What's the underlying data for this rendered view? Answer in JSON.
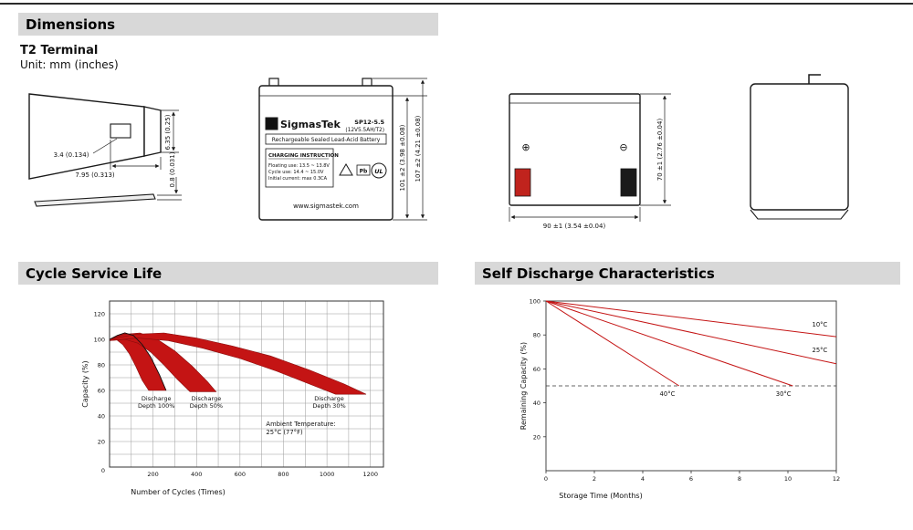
{
  "header": {
    "title": "Dimensions"
  },
  "terminal": {
    "title": "T2 Terminal",
    "unit": "Unit: mm (inches)",
    "dims": {
      "height": "6.35 (0.25)",
      "hole": "3.4 (0.134)",
      "width": "7.95 (0.313)",
      "thickness": "0.8 (0.031)"
    }
  },
  "front_view": {
    "logo_letter": "S",
    "brand": "SigmasTek",
    "model": "SP12-5.5",
    "rating": "(12V5.5AH/T2)",
    "type_line": "Rechargeable Sealed Lead-Acid Battery",
    "charging_title": "CHARGING INSTRUCTION",
    "charging_line1": "Floating use: 13.5 ~ 13.8V",
    "charging_line2": "Cycle use: 14.4 ~ 15.0V",
    "charging_line3": "Initial current: max 0.3CA",
    "icon_pb": "Pb",
    "icon_ul": "UL",
    "website": "www.sigmastek.com",
    "dim_height_case": "101 ±2 (3.98 ±0.08)",
    "dim_height_total": "107 ±2 (4.21 ±0.08)"
  },
  "rear_view": {
    "positive": "⊕",
    "negative": "⊖",
    "dim_height": "70 ±1 (2.76 ±0.04)",
    "dim_width": "90 ±1 (3.54 ±0.04)"
  },
  "chart_data": [
    {
      "type": "area",
      "title": "Cycle Service Life",
      "xlabel": "Number of Cycles (Times)",
      "ylabel": "Capacity (%)",
      "xlim": [
        0,
        1260
      ],
      "ylim": [
        0,
        130
      ],
      "xticks": [
        200,
        400,
        600,
        800,
        1000,
        1200
      ],
      "yticks": [
        20,
        40,
        60,
        80,
        100,
        120
      ],
      "origin_label": "0",
      "grid": {
        "x_step": 100,
        "y_step": 10
      },
      "band_color": "#c41414",
      "outline": [
        [
          0,
          100
        ],
        [
          35,
          103
        ],
        [
          70,
          105
        ],
        [
          110,
          103
        ],
        [
          150,
          96
        ],
        [
          190,
          86
        ],
        [
          230,
          72
        ],
        [
          260,
          60
        ]
      ],
      "bands": [
        {
          "label_line1": "Discharge",
          "label_line2": "Depth 100%",
          "label_x": 215,
          "label_y": 52,
          "polygon": [
            [
              0,
              100
            ],
            [
              35,
              103
            ],
            [
              70,
              105
            ],
            [
              110,
              103
            ],
            [
              150,
              96
            ],
            [
              190,
              86
            ],
            [
              230,
              72
            ],
            [
              260,
              60
            ],
            [
              180,
              60
            ],
            [
              150,
              68
            ],
            [
              120,
              79
            ],
            [
              90,
              89
            ],
            [
              60,
              96
            ],
            [
              30,
              100
            ],
            [
              0,
              99
            ]
          ]
        },
        {
          "label_line1": "Discharge",
          "label_line2": "Depth 50%",
          "label_x": 445,
          "label_y": 52,
          "polygon": [
            [
              0,
              100
            ],
            [
              70,
              104
            ],
            [
              140,
              105
            ],
            [
              220,
              100
            ],
            [
              300,
              91
            ],
            [
              380,
              79
            ],
            [
              450,
              67
            ],
            [
              490,
              59
            ],
            [
              370,
              59
            ],
            [
              310,
              69
            ],
            [
              250,
              80
            ],
            [
              190,
              90
            ],
            [
              130,
              97
            ],
            [
              70,
              100
            ],
            [
              0,
              99
            ]
          ]
        },
        {
          "label_line1": "Discharge",
          "label_line2": "Depth 30%",
          "label_x": 1010,
          "label_y": 52,
          "polygon": [
            [
              0,
              100
            ],
            [
              120,
              104
            ],
            [
              250,
              105
            ],
            [
              400,
              101
            ],
            [
              560,
              95
            ],
            [
              740,
              87
            ],
            [
              920,
              76
            ],
            [
              1080,
              65
            ],
            [
              1180,
              57
            ],
            [
              1040,
              57
            ],
            [
              920,
              65
            ],
            [
              770,
              75
            ],
            [
              600,
              85
            ],
            [
              430,
              93
            ],
            [
              270,
              99
            ],
            [
              130,
              101
            ],
            [
              0,
              99
            ]
          ]
        }
      ],
      "annotation_line1": "Ambient Temperature:",
      "annotation_line2": "25°C (77°F)",
      "annotation_x": 720,
      "annotation_y": 32
    },
    {
      "type": "line",
      "title": "Self Discharge Characteristics",
      "xlabel": "Storage Time (Months)",
      "ylabel": "Remaining Capacity (%)",
      "xlim": [
        0,
        12
      ],
      "ylim": [
        0,
        100
      ],
      "xticks": [
        0,
        2,
        4,
        6,
        8,
        10,
        12
      ],
      "yticks": [
        20,
        40,
        60,
        80,
        100
      ],
      "line_color": "#c41414",
      "dashed_y": 50,
      "series": [
        {
          "name": "10°C",
          "points": [
            [
              0,
              100
            ],
            [
              12,
              79
            ]
          ],
          "label_x": 11.0,
          "label_y": 85
        },
        {
          "name": "25°C",
          "points": [
            [
              0,
              100
            ],
            [
              12,
              63
            ]
          ],
          "label_x": 11.0,
          "label_y": 70
        },
        {
          "name": "30°C",
          "points": [
            [
              0,
              100
            ],
            [
              10.2,
              50
            ]
          ],
          "label_x": 9.5,
          "label_y": 44
        },
        {
          "name": "40°C",
          "points": [
            [
              0,
              100
            ],
            [
              5.5,
              50
            ]
          ],
          "label_x": 4.7,
          "label_y": 44
        }
      ]
    }
  ]
}
